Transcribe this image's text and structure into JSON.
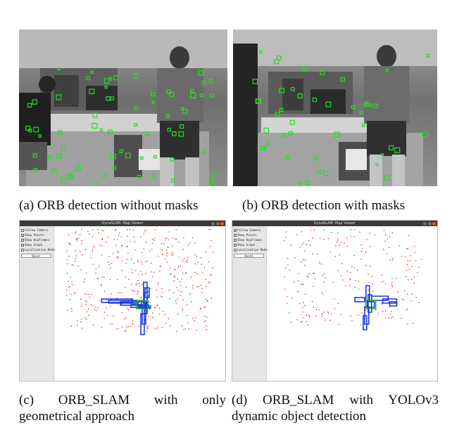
{
  "figure": {
    "panels": [
      {
        "caption": "(a) ORB detection without masks"
      },
      {
        "caption": "(b) ORB detection with masks"
      },
      {
        "caption": "(c) ORB_SLAM with only geometrical approach",
        "viewer": {
          "window_title": "DynaSLAM: Map Viewer",
          "options": [
            "Follow Camera",
            "Show Points",
            "Show KeyFrames",
            "Show Graph",
            "Localization Mode"
          ],
          "reset_label": "Reset"
        }
      },
      {
        "caption": "(d) ORB_SLAM with YOLOv3 dynamic object detection",
        "viewer": {
          "window_title": "DynaSLAM: Map Viewer",
          "options": [
            "Follow Camera",
            "Show Points",
            "Show KeyFrames",
            "Show Graph",
            "Localization Mode"
          ],
          "reset_label": "Reset"
        }
      }
    ]
  },
  "colors": {
    "feature_marker": "#22e022",
    "map_point": "#dd1f1f",
    "keyframe": "#1a3ad8",
    "current_frame": "#18b018"
  }
}
